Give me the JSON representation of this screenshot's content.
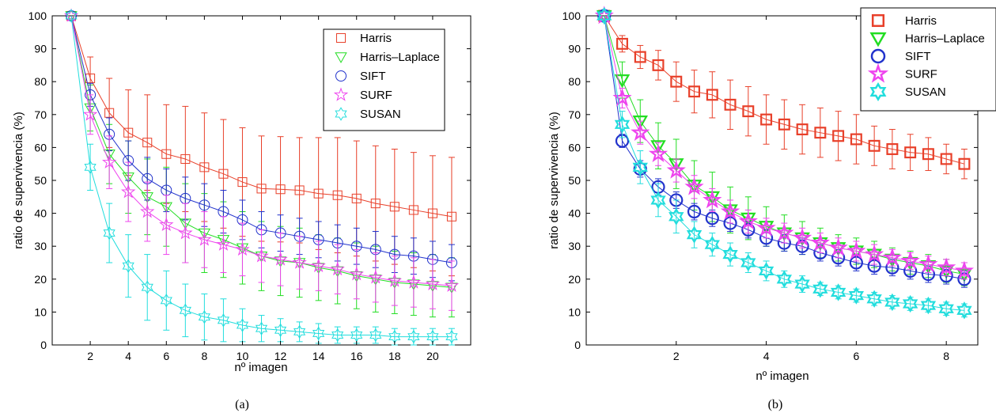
{
  "chart_data": [
    {
      "type": "line",
      "panel_label": "(a)",
      "xlabel": "nº imagen",
      "ylabel": "ratio de supervivencia (%)",
      "xlim": [
        0,
        22
      ],
      "ylim": [
        0,
        100
      ],
      "xticks": [
        2,
        4,
        6,
        8,
        10,
        12,
        14,
        16,
        18,
        20
      ],
      "yticks": [
        0,
        10,
        20,
        30,
        40,
        50,
        60,
        70,
        80,
        90,
        100
      ],
      "legend_position": "top-right",
      "grid": false,
      "error_bars": true,
      "series": [
        {
          "name": "Harris",
          "color": "#e8402a",
          "marker": "square",
          "x": [
            1,
            2,
            3,
            4,
            5,
            6,
            7,
            8,
            9,
            10,
            11,
            12,
            13,
            14,
            15,
            16,
            17,
            18,
            19,
            20,
            21
          ],
          "values": [
            100,
            81,
            70.5,
            64.5,
            61.5,
            58,
            56.5,
            54,
            52,
            49.5,
            47.5,
            47.3,
            47,
            46,
            45.5,
            44.5,
            43,
            42,
            41,
            40,
            39
          ],
          "err": [
            0,
            6.5,
            10.5,
            13,
            14.5,
            15,
            16,
            16.5,
            16.5,
            16.5,
            16,
            16,
            16,
            17,
            17.5,
            17.5,
            17.5,
            17.5,
            17.5,
            17.5,
            18
          ]
        },
        {
          "name": "Harris–Laplace",
          "color": "#22dd22",
          "marker": "triangle-down",
          "x": [
            1,
            2,
            3,
            4,
            5,
            6,
            7,
            8,
            9,
            10,
            11,
            12,
            13,
            14,
            15,
            16,
            17,
            18,
            19,
            20,
            21
          ],
          "values": [
            100,
            72,
            58,
            51,
            45,
            42,
            37,
            34,
            32,
            29.5,
            27,
            25.5,
            25,
            23.5,
            22.5,
            21,
            20,
            19,
            18.5,
            18,
            17.5
          ],
          "err": [
            0,
            7,
            9,
            11,
            11.5,
            12,
            12,
            12,
            11.5,
            11,
            10.5,
            10.5,
            10.5,
            10,
            10,
            10,
            10,
            9.5,
            9.5,
            9.5,
            9
          ]
        },
        {
          "name": "SIFT",
          "color": "#2233cc",
          "marker": "circle",
          "x": [
            1,
            2,
            3,
            4,
            5,
            6,
            7,
            8,
            9,
            10,
            11,
            12,
            13,
            14,
            15,
            16,
            17,
            18,
            19,
            20,
            21
          ],
          "values": [
            100,
            76,
            64,
            56,
            50.5,
            47,
            44.5,
            42.5,
            40.5,
            38,
            35,
            34,
            33,
            32,
            31,
            30,
            29,
            27.5,
            27,
            26,
            25
          ],
          "err": [
            0,
            3.5,
            5,
            6,
            6.5,
            6.5,
            6.5,
            6.5,
            6.5,
            6,
            5.5,
            5.5,
            5.5,
            5.5,
            5.5,
            5.5,
            5.5,
            5.5,
            5.5,
            5.5,
            5.5
          ]
        },
        {
          "name": "SURF",
          "color": "#ee44ee",
          "marker": "star",
          "x": [
            1,
            2,
            3,
            4,
            5,
            6,
            7,
            8,
            9,
            10,
            11,
            12,
            13,
            14,
            15,
            16,
            17,
            18,
            19,
            20,
            21
          ],
          "values": [
            100,
            70,
            55.5,
            46.5,
            40.5,
            36.5,
            34,
            32,
            30.5,
            29,
            27,
            26,
            25,
            24,
            23,
            21.5,
            20.5,
            19.5,
            19,
            18.5,
            18
          ],
          "err": [
            0,
            6,
            8,
            9,
            9,
            9,
            9,
            8.5,
            8.5,
            8,
            8,
            8,
            8,
            7.5,
            7.5,
            7.5,
            7.5,
            7.5,
            7.5,
            7.5,
            7.5
          ]
        },
        {
          "name": "SUSAN",
          "color": "#22dddd",
          "marker": "hexagram",
          "x": [
            1,
            2,
            3,
            4,
            5,
            6,
            7,
            8,
            9,
            10,
            11,
            12,
            13,
            14,
            15,
            16,
            17,
            18,
            19,
            20,
            21
          ],
          "values": [
            100,
            54,
            34,
            24,
            17.5,
            13.5,
            10.5,
            8.5,
            7.5,
            6,
            5,
            4.5,
            4,
            3.5,
            3,
            3,
            3,
            2.5,
            2.5,
            2.5,
            2.5
          ],
          "err": [
            0,
            7,
            9,
            9.5,
            10,
            9,
            8,
            7,
            6.5,
            5,
            4,
            3.5,
            3,
            3,
            2.5,
            2.5,
            2.5,
            2.5,
            2.5,
            2.5,
            2.5
          ]
        }
      ]
    },
    {
      "type": "line",
      "panel_label": "(b)",
      "xlabel": "nº imagen",
      "ylabel": "ratio de supervivencia (%)",
      "xlim": [
        0,
        8.7
      ],
      "ylim": [
        0,
        100
      ],
      "xticks": [
        2,
        4,
        6,
        8
      ],
      "yticks": [
        0,
        10,
        20,
        30,
        40,
        50,
        60,
        70,
        80,
        90,
        100
      ],
      "legend_position": "top-right",
      "grid": false,
      "error_bars": true,
      "series": [
        {
          "name": "Harris",
          "color": "#e8402a",
          "marker": "square",
          "x": [
            0.4,
            0.8,
            1.2,
            1.6,
            2,
            2.4,
            2.8,
            3.2,
            3.6,
            4,
            4.4,
            4.8,
            5.2,
            5.6,
            6,
            6.4,
            6.8,
            7.2,
            7.6,
            8,
            8.4
          ],
          "values": [
            100,
            91.5,
            87.5,
            85,
            80,
            77,
            76,
            73,
            71,
            68.5,
            67,
            65.5,
            64.5,
            63.5,
            62.5,
            60.5,
            59.5,
            58.5,
            58,
            56.5,
            55
          ],
          "err": [
            0,
            2.5,
            3.5,
            4.5,
            6,
            6.5,
            7,
            7.5,
            7.5,
            7.5,
            7.5,
            7.5,
            7.5,
            7.5,
            7.5,
            6,
            6,
            5.5,
            5,
            4.5,
            4.5
          ]
        },
        {
          "name": "Harris–Laplace",
          "color": "#22dd22",
          "marker": "triangle-down",
          "x": [
            0.4,
            0.8,
            1.2,
            1.6,
            2,
            2.4,
            2.8,
            3.2,
            3.6,
            4,
            4.4,
            4.8,
            5.2,
            5.6,
            6,
            6.4,
            6.8,
            7.2,
            7.6,
            8,
            8.4
          ],
          "values": [
            100,
            80.5,
            68,
            60.5,
            55,
            48.5,
            45,
            41,
            38.5,
            36,
            34,
            32.5,
            31,
            29.5,
            28.5,
            27.5,
            26,
            25,
            24,
            22.5,
            21.5
          ],
          "err": [
            0,
            5.5,
            6.5,
            7,
            7.5,
            7.5,
            7.5,
            7,
            6.5,
            6,
            5.5,
            5,
            4.5,
            4,
            4,
            4,
            3.5,
            3.5,
            3.5,
            3.5,
            3.5
          ]
        },
        {
          "name": "SIFT",
          "color": "#2233cc",
          "marker": "circle",
          "x": [
            0.4,
            0.8,
            1.2,
            1.6,
            2,
            2.4,
            2.8,
            3.2,
            3.6,
            4,
            4.4,
            4.8,
            5.2,
            5.6,
            6,
            6.4,
            6.8,
            7.2,
            7.6,
            8,
            8.4
          ],
          "values": [
            100,
            62,
            53.5,
            48,
            44,
            40.5,
            38.5,
            37,
            35,
            32.5,
            31,
            30,
            28,
            26.5,
            25,
            24,
            23.5,
            22.5,
            21.5,
            21,
            20
          ],
          "err": [
            0,
            2,
            2.5,
            2.5,
            2.5,
            2.5,
            2.5,
            2.5,
            2.5,
            2.5,
            2.5,
            2.5,
            2.5,
            2.5,
            2.5,
            2.5,
            2.5,
            2.5,
            2.5,
            2.5,
            2.5
          ]
        },
        {
          "name": "SURF",
          "color": "#ee44ee",
          "marker": "star",
          "x": [
            0.4,
            0.8,
            1.2,
            1.6,
            2,
            2.4,
            2.8,
            3.2,
            3.6,
            4,
            4.4,
            4.8,
            5.2,
            5.6,
            6,
            6.4,
            6.8,
            7.2,
            7.6,
            8,
            8.4
          ],
          "values": [
            100,
            75,
            64.5,
            58,
            53,
            48,
            44,
            40.5,
            37.5,
            35.5,
            34,
            32.5,
            31,
            29.5,
            28.5,
            27.5,
            26.5,
            25.5,
            24.5,
            23.5,
            22.5
          ],
          "err": [
            0,
            3,
            3.5,
            3.5,
            3.5,
            3.5,
            3.5,
            3.5,
            3.5,
            3,
            3,
            3,
            3,
            3,
            3,
            3,
            2.5,
            2.5,
            2.5,
            2.5,
            2.5
          ]
        },
        {
          "name": "SUSAN",
          "color": "#22dddd",
          "marker": "hexagram",
          "x": [
            0.4,
            0.8,
            1.2,
            1.6,
            2,
            2.4,
            2.8,
            3.2,
            3.6,
            4,
            4.4,
            4.8,
            5.2,
            5.6,
            6,
            6.4,
            6.8,
            7.2,
            7.6,
            8,
            8.4
          ],
          "values": [
            100,
            67,
            54,
            44,
            39,
            33.5,
            30.5,
            27.5,
            25,
            22.5,
            20,
            18.5,
            17,
            16,
            15,
            14,
            13,
            12.5,
            12,
            11,
            10.5
          ],
          "err": [
            0,
            4,
            5,
            5,
            5,
            4,
            3.5,
            3.5,
            3,
            3,
            2.5,
            2.5,
            2,
            2,
            2,
            2,
            2,
            2,
            2,
            2,
            2
          ]
        }
      ]
    }
  ]
}
